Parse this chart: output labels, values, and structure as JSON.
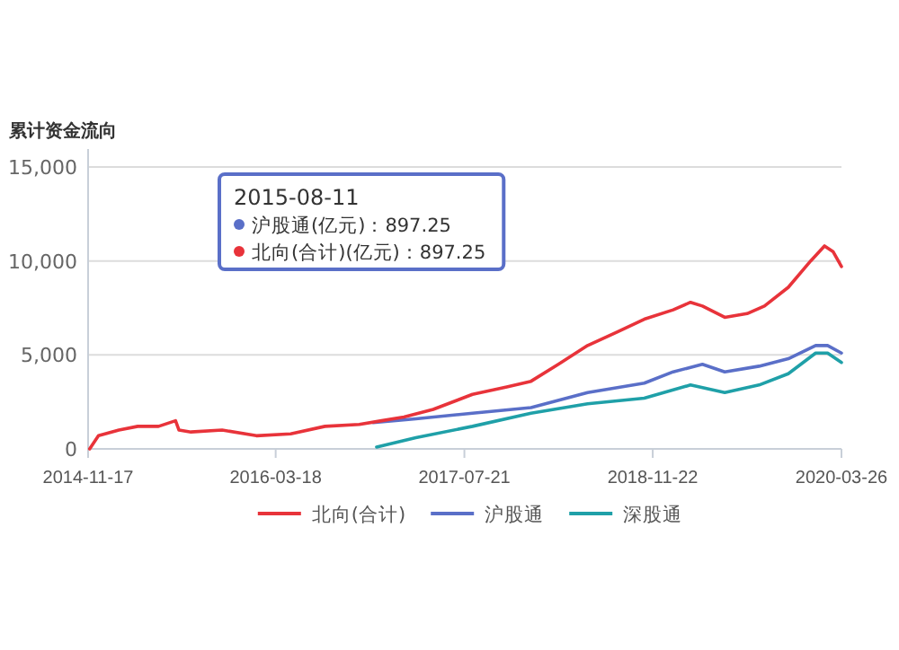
{
  "chart_data": {
    "type": "line",
    "title": "累计资金流向",
    "xlim": [
      "2014-11-17",
      "2020-03-26"
    ],
    "xticks": [
      "2014-11-17",
      "2016-03-18",
      "2017-07-21",
      "2018-11-22",
      "2020-03-26"
    ],
    "ylim": [
      0,
      15000
    ],
    "yticks": [
      {
        "value": 0,
        "label": "0"
      },
      {
        "value": 5000,
        "label": "5,000"
      },
      {
        "value": 10000,
        "label": "10,000"
      },
      {
        "value": 15000,
        "label": "15,000"
      }
    ],
    "grid": "y",
    "legend": "bottom",
    "marker": "none",
    "line_style": "solid",
    "annotations": [
      "2015-08-11\n沪股通(亿元)：897.25\n北向(合计)(亿元)：897.25"
    ],
    "series": [
      {
        "name": "北向(合计)",
        "color": "#e8333a",
        "x": [
          "2014-11-21",
          "2014-12-14",
          "2015-02-05",
          "2015-03-26",
          "2015-05-19",
          "2015-07-02",
          "2015-07-11",
          "2015-08-11",
          "2015-10-31",
          "2016-01-28",
          "2016-04-26",
          "2016-07-24",
          "2016-10-21",
          "2016-12-18",
          "2017-02-14",
          "2017-05-01",
          "2017-08-11",
          "2017-11-08",
          "2018-01-10",
          "2018-03-22",
          "2018-06-06",
          "2018-08-20",
          "2018-10-31",
          "2019-01-14",
          "2019-02-28",
          "2019-03-31",
          "2019-05-28",
          "2019-07-25",
          "2019-09-08",
          "2019-11-09",
          "2020-01-06",
          "2020-02-11",
          "2020-03-04",
          "2020-03-26"
        ],
        "values": [
          0,
          700,
          1000,
          1200,
          1200,
          1500,
          1000,
          900,
          1000,
          700,
          800,
          1200,
          1300,
          1500,
          1700,
          2100,
          2900,
          3300,
          3600,
          4500,
          5500,
          6200,
          6900,
          7400,
          7800,
          7600,
          7000,
          7200,
          7600,
          8600,
          10000,
          10800,
          10500,
          9700
        ]
      },
      {
        "name": "沪股通",
        "color": "#5a6fc8",
        "x": [
          "2016-11-26",
          "2017-03-17",
          "2017-08-11",
          "2018-01-10",
          "2018-06-06",
          "2018-10-31",
          "2019-01-14",
          "2019-03-31",
          "2019-05-28",
          "2019-08-25",
          "2019-11-09",
          "2020-01-19",
          "2020-02-19",
          "2020-03-26"
        ],
        "values": [
          1400,
          1600,
          1900,
          2200,
          3000,
          3500,
          4100,
          4500,
          4100,
          4400,
          4800,
          5500,
          5500,
          5100
        ]
      },
      {
        "name": "深股通",
        "color": "#1fa0a8",
        "x": [
          "2016-12-05",
          "2017-03-17",
          "2017-08-11",
          "2018-01-10",
          "2018-06-06",
          "2018-10-31",
          "2019-02-28",
          "2019-05-28",
          "2019-08-25",
          "2019-11-09",
          "2020-01-19",
          "2020-02-19",
          "2020-03-26"
        ],
        "values": [
          100,
          600,
          1200,
          1900,
          2400,
          2700,
          3400,
          3000,
          3400,
          4000,
          5100,
          5100,
          4600
        ]
      }
    ]
  }
}
